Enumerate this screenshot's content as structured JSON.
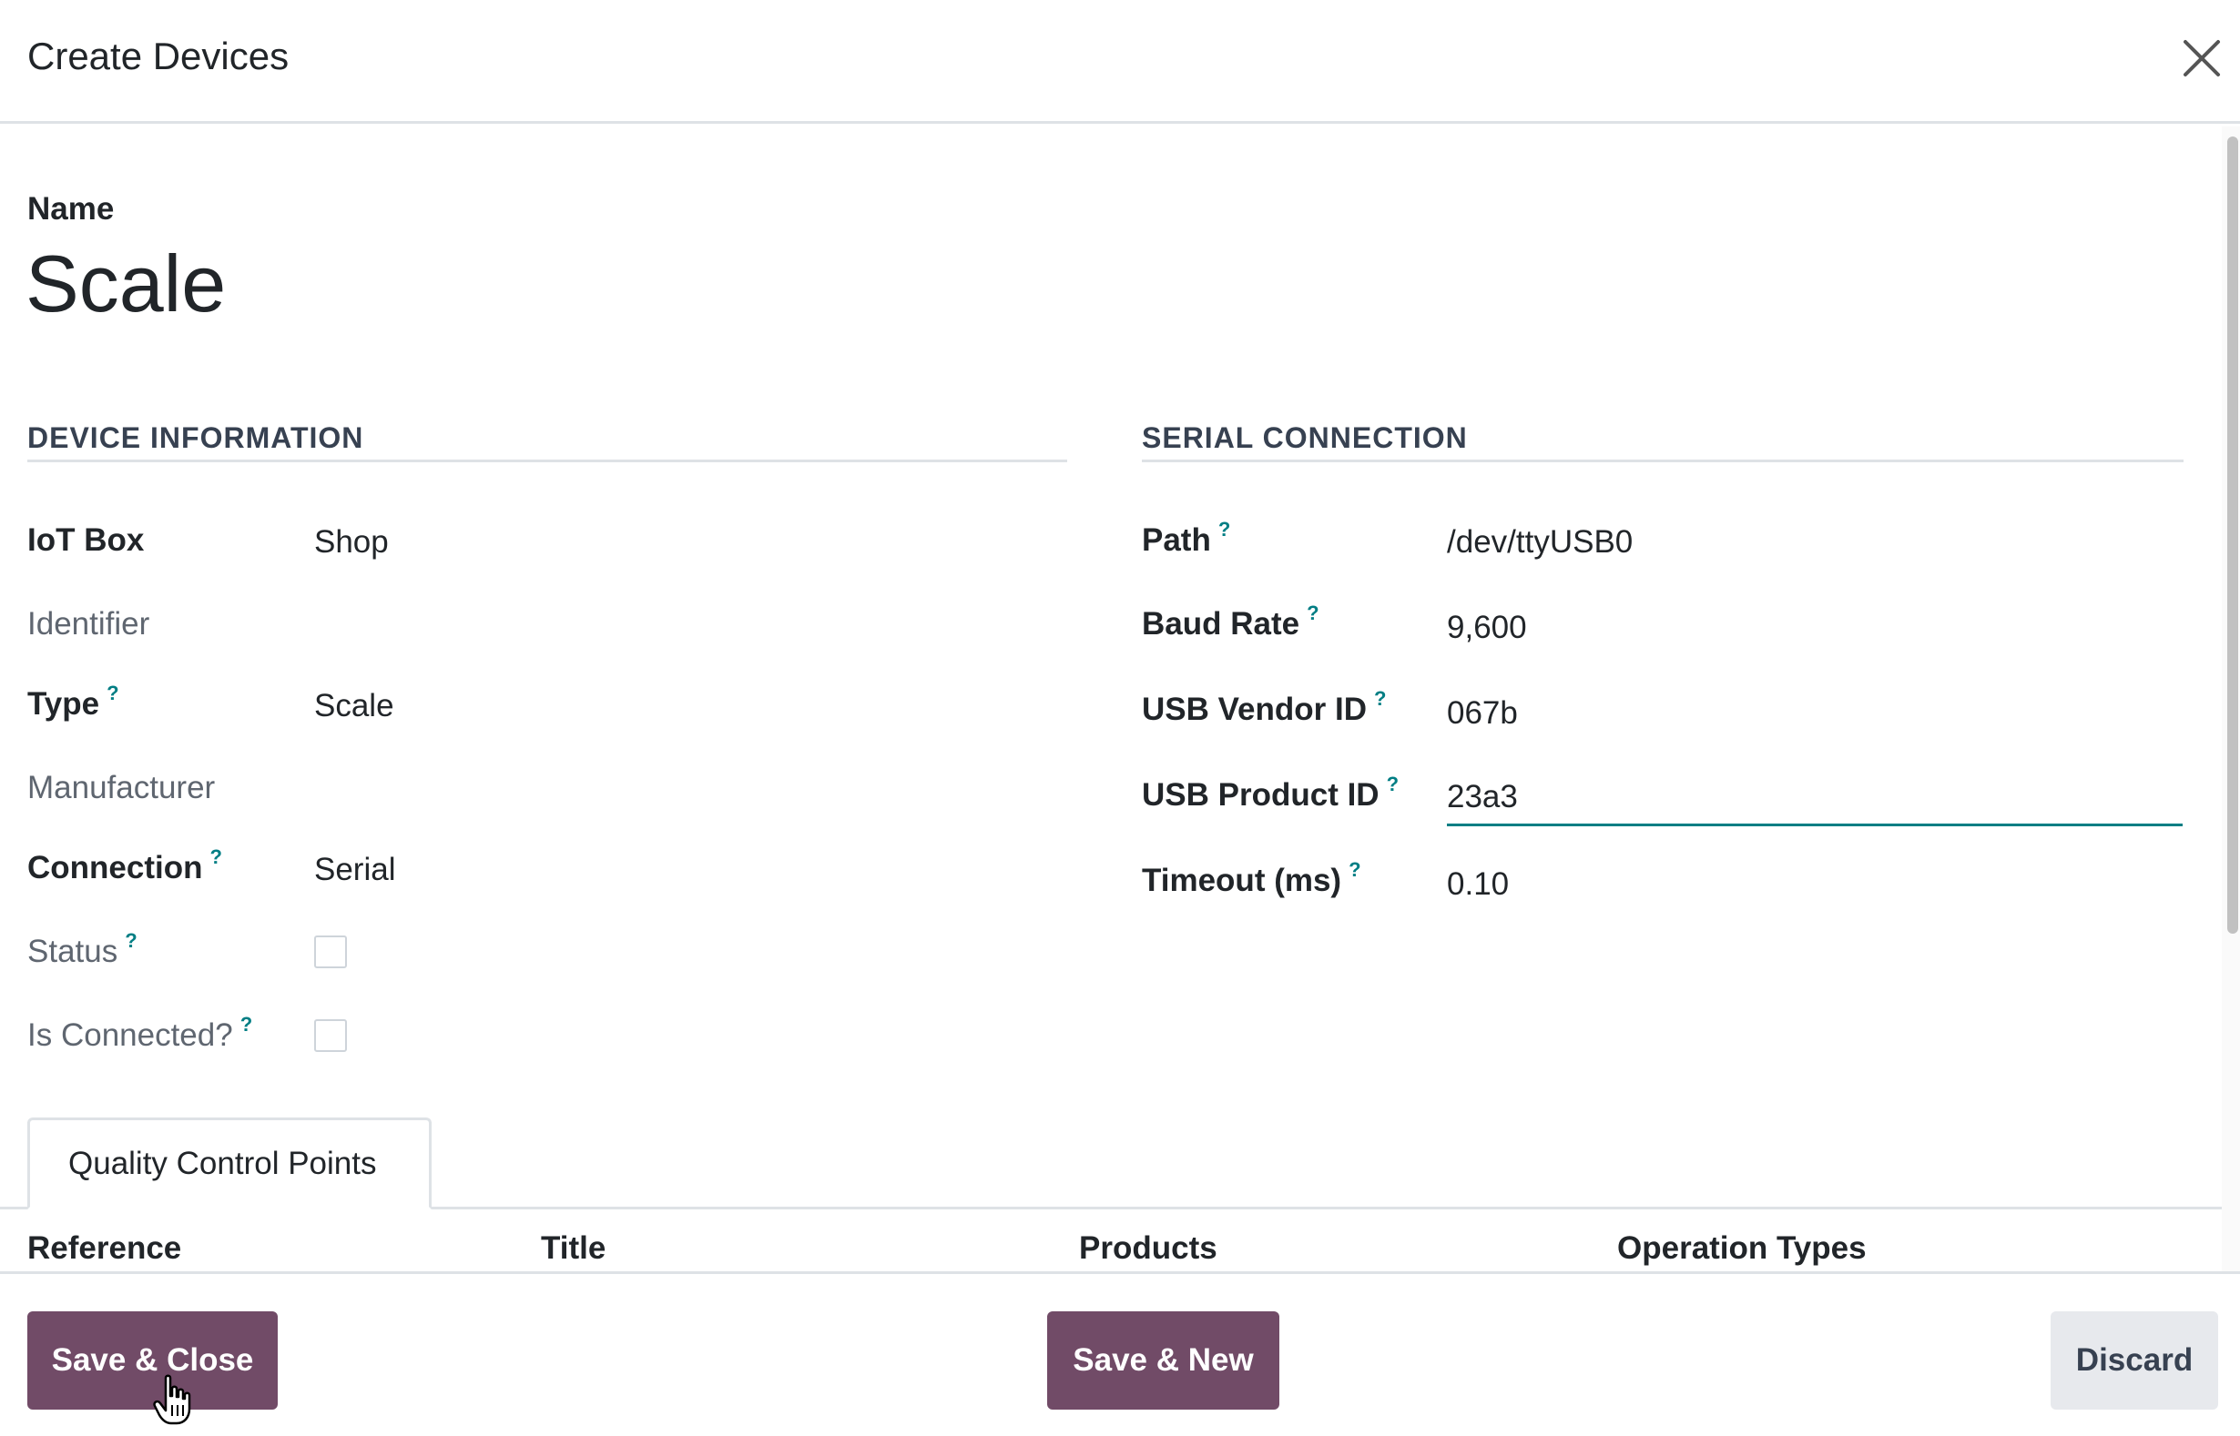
{
  "dialog": {
    "title": "Create Devices"
  },
  "name": {
    "label": "Name",
    "value": "Scale"
  },
  "device_information": {
    "title": "DEVICE INFORMATION",
    "iot_box": {
      "label": "IoT Box",
      "value": "Shop"
    },
    "identifier": {
      "label": "Identifier",
      "value": ""
    },
    "type": {
      "label": "Type",
      "value": "Scale"
    },
    "manufacturer": {
      "label": "Manufacturer",
      "value": ""
    },
    "connection": {
      "label": "Connection",
      "value": "Serial"
    },
    "status": {
      "label": "Status",
      "checked": false
    },
    "is_connected": {
      "label": "Is Connected?",
      "checked": false
    }
  },
  "serial_connection": {
    "title": "SERIAL CONNECTION",
    "path": {
      "label": "Path",
      "value": "/dev/ttyUSB0"
    },
    "baud_rate": {
      "label": "Baud Rate",
      "value": "9,600"
    },
    "usb_vendor_id": {
      "label": "USB Vendor ID",
      "value": "067b"
    },
    "usb_product_id": {
      "label": "USB Product ID",
      "value": "23a3"
    },
    "timeout": {
      "label": "Timeout (ms)",
      "value": "0.10"
    }
  },
  "help_marker": "?",
  "tabs": [
    {
      "label": "Quality Control Points",
      "active": true
    }
  ],
  "table": {
    "columns": [
      "Reference",
      "Title",
      "Products",
      "Operation Types"
    ]
  },
  "footer": {
    "save_close": "Save & Close",
    "save_new": "Save & New",
    "discard": "Discard"
  },
  "colors": {
    "primary": "#714b67",
    "accent": "#017e84",
    "border": "#dee2e6"
  },
  "icons": {
    "close": "close-icon",
    "cursor": "hand-pointer-icon"
  }
}
